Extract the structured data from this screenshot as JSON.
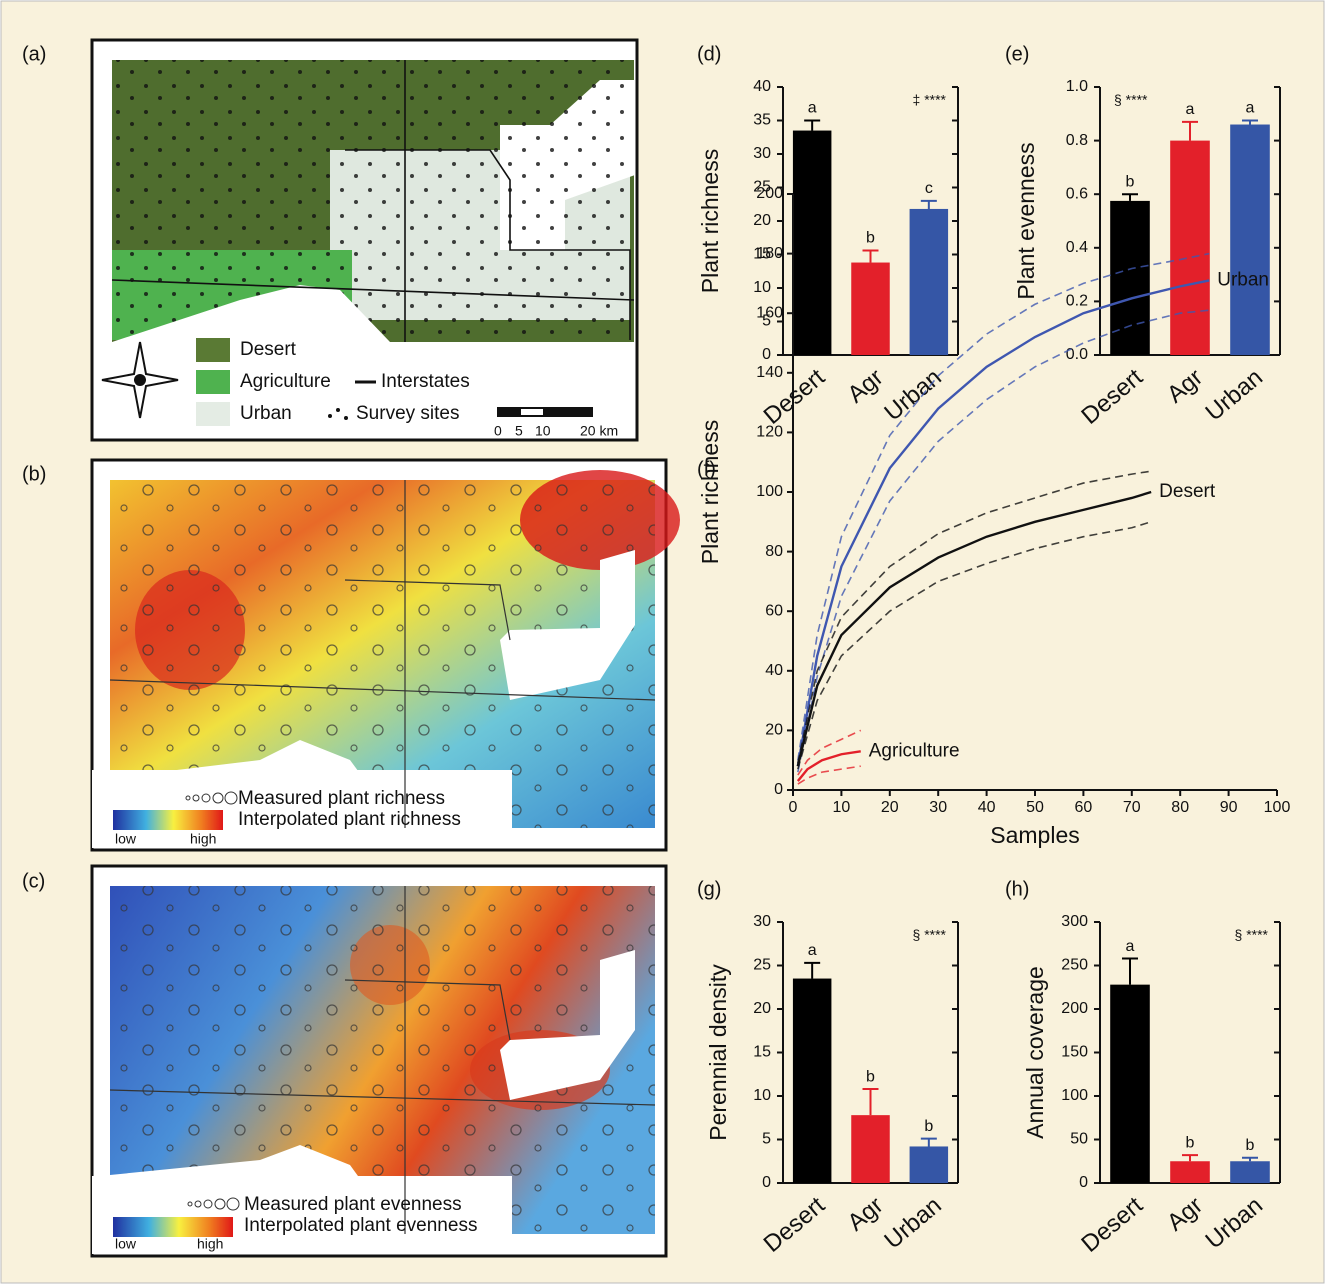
{
  "maps": [
    {
      "label": "(a)",
      "legend": [
        "Desert",
        "Agriculture",
        "Interstates",
        "Urban",
        "Survey sites"
      ],
      "scale_labels": [
        "0",
        "5",
        "10",
        "20 km"
      ]
    },
    {
      "label": "(b)",
      "legend": [
        "Measured plant richness",
        "Interpolated plant richness"
      ],
      "scale_labels": [
        "low",
        "high"
      ]
    },
    {
      "label": "(c)",
      "legend": [
        "Measured plant evenness",
        "Interpolated plant evenness"
      ],
      "scale_labels": [
        "low",
        "high"
      ]
    }
  ],
  "chart_data": [
    {
      "type": "bar",
      "label": "(d)",
      "y_label": "Plant richness",
      "note": "‡ ****",
      "categories": [
        "Desert",
        "Agr",
        "Urban"
      ],
      "values": [
        33.5,
        13.8,
        21.8
      ],
      "errors": [
        1.5,
        1.8,
        1.2
      ],
      "letters": [
        "a",
        "b",
        "c"
      ],
      "colors": [
        "#000000",
        "#e3202a",
        "#3556a6"
      ],
      "ylim": [
        0,
        40
      ],
      "yticks": [
        0,
        5,
        10,
        15,
        20,
        25,
        30,
        35,
        40
      ]
    },
    {
      "type": "bar",
      "label": "(e)",
      "y_label": "Plant evenness",
      "note": "§ ****",
      "categories": [
        "Desert",
        "Agr",
        "Urban"
      ],
      "values": [
        0.575,
        0.8,
        0.86
      ],
      "errors": [
        0.025,
        0.07,
        0.015
      ],
      "letters": [
        "b",
        "a",
        "a"
      ],
      "colors": [
        "#000000",
        "#e3202a",
        "#3556a6"
      ],
      "ylim": [
        0,
        1
      ],
      "yticks": [
        {
          "value": 0,
          "label": "0.0"
        },
        0.2,
        0.4,
        0.6,
        0.8,
        {
          "value": 1,
          "label": "1.0"
        }
      ]
    },
    {
      "type": "line",
      "label": "(f)",
      "y_label": "Plant richness",
      "x_label": "Samples",
      "xlim": [
        0,
        100
      ],
      "xticks": [
        0,
        10,
        20,
        30,
        40,
        50,
        60,
        70,
        80,
        90,
        100
      ],
      "ylim": [
        0,
        200
      ],
      "yticks": [
        0,
        20,
        40,
        60,
        80,
        100,
        120,
        140,
        160,
        180,
        200
      ],
      "series": [
        {
          "name": "Urban",
          "color": "#3f57b0",
          "x": [
            1,
            5,
            10,
            20,
            30,
            40,
            50,
            60,
            70,
            80,
            86
          ],
          "values": [
            8,
            45,
            75,
            108,
            128,
            142,
            152,
            160,
            165,
            169,
            171
          ],
          "lower": [
            6,
            38,
            65,
            97,
            117,
            131,
            142,
            150,
            156,
            160,
            161
          ],
          "upper": [
            10,
            52,
            85,
            119,
            139,
            153,
            163,
            170,
            175,
            178,
            180
          ]
        },
        {
          "name": "Desert",
          "color": "#111111",
          "x": [
            1,
            5,
            10,
            20,
            30,
            40,
            50,
            60,
            70,
            74
          ],
          "values": [
            8,
            35,
            52,
            68,
            78,
            85,
            90,
            94,
            98,
            100
          ],
          "lower": [
            7,
            30,
            45,
            60,
            70,
            76,
            81,
            85,
            88,
            90
          ],
          "upper": [
            9,
            40,
            58,
            75,
            86,
            93,
            98,
            103,
            106,
            107
          ]
        },
        {
          "name": "Agriculture",
          "color": "#e3202a",
          "x": [
            1,
            3,
            6,
            10,
            14
          ],
          "values": [
            3,
            7,
            10,
            12,
            13
          ],
          "lower": [
            2,
            4,
            6,
            7,
            8
          ],
          "upper": [
            5,
            10,
            14,
            17,
            20
          ]
        }
      ]
    },
    {
      "type": "bar",
      "label": "(g)",
      "y_label": "Perennial density",
      "note": "§ ****",
      "categories": [
        "Desert",
        "Agr",
        "Urban"
      ],
      "values": [
        23.5,
        7.8,
        4.2
      ],
      "errors": [
        1.8,
        3,
        0.9
      ],
      "letters": [
        "a",
        "b",
        "b"
      ],
      "colors": [
        "#000000",
        "#e3202a",
        "#3556a6"
      ],
      "ylim": [
        0,
        30
      ],
      "yticks": [
        0,
        5,
        10,
        15,
        20,
        25,
        30
      ]
    },
    {
      "type": "bar",
      "label": "(h)",
      "y_label": "Annual coverage",
      "note": "§ ****",
      "categories": [
        "Desert",
        "Agr",
        "Urban"
      ],
      "values": [
        228,
        25,
        25
      ],
      "errors": [
        30,
        7,
        4
      ],
      "letters": [
        "a",
        "b",
        "b"
      ],
      "colors": [
        "#000000",
        "#e3202a",
        "#3556a6"
      ],
      "ylim": [
        0,
        300
      ],
      "yticks": [
        0,
        50,
        100,
        150,
        200,
        250,
        300
      ]
    }
  ]
}
